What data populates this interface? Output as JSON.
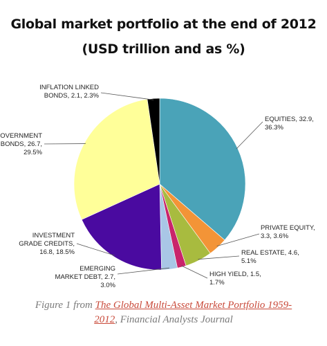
{
  "title_line1": "Global market portfolio at the end of 2012",
  "title_line2": "(USD trillion and as %)",
  "caption": {
    "prefix": "Figure 1 from ",
    "link_part1": "The Global Multi-Asset Market Portfolio 1959-",
    "link_part2": "2012",
    "suffix": ", Financial Analysts Journal"
  },
  "chart_data": {
    "type": "pie",
    "slices": [
      {
        "name": "EQUITIES",
        "value": 32.9,
        "percent": 36.3,
        "color": "#4aa3b8",
        "label_lines": [
          "EQUITIES, 32.9,",
          "36.3%"
        ]
      },
      {
        "name": "PRIVATE EQUITY",
        "value": 3.3,
        "percent": 3.6,
        "color": "#f39437",
        "label_lines": [
          "PRIVATE EQUITY,",
          "3.3, 3.6%"
        ]
      },
      {
        "name": "REAL ESTATE",
        "value": 4.6,
        "percent": 5.1,
        "color": "#a8bb3f",
        "label_lines": [
          "REAL ESTATE, 4.6,",
          "5.1%"
        ]
      },
      {
        "name": "HIGH YIELD",
        "value": 1.5,
        "percent": 1.7,
        "color": "#c9246b",
        "label_lines": [
          "HIGH YIELD, 1.5,",
          "1.7%"
        ]
      },
      {
        "name": "EMERGING MARKET DEBT",
        "value": 2.7,
        "percent": 3.0,
        "color": "#a9c6e6",
        "label_lines": [
          "EMERGING",
          "MARKET DEBT, 2.7,",
          "3.0%"
        ]
      },
      {
        "name": "INVESTMENT GRADE CREDITS",
        "value": 16.8,
        "percent": 18.5,
        "color": "#4a0aa0",
        "label_lines": [
          "INVESTMENT",
          "GRADE CREDITS,",
          "16.8, 18.5%"
        ]
      },
      {
        "name": "GOVERNMENT BONDS",
        "value": 26.7,
        "percent": 29.5,
        "color": "#ffff99",
        "label_lines": [
          "GOVERNMENT",
          "BONDS, 26.7,",
          "29.5%"
        ]
      },
      {
        "name": "INFLATION LINKED BONDS",
        "value": 2.1,
        "percent": 2.3,
        "color": "#000000",
        "label_lines": [
          "INFLATION LINKED",
          "BONDS, 2.1, 2.3%"
        ]
      }
    ]
  }
}
